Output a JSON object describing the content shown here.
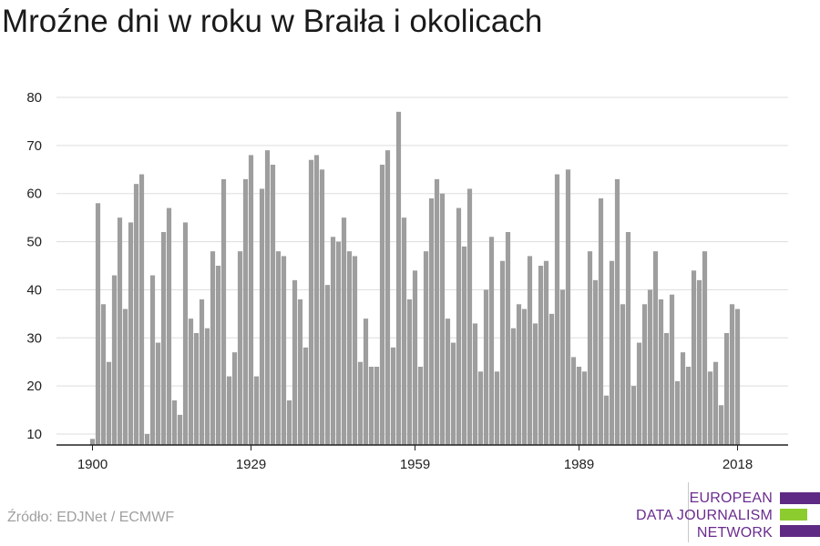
{
  "title": "Mroźne dni w roku w Braiła i okolicach",
  "source": "Źródło: EDJNet / ECMWF",
  "logo": {
    "line1": "EUROPEAN",
    "line2": "DATA JOURNALISM",
    "line3": "NETWORK"
  },
  "colors": {
    "bar": "#9e9e9e",
    "grid": "#dddddd",
    "axis": "#222222",
    "logo_purple": "#5f2a84",
    "logo_green": "#8ccc2e"
  },
  "chart_data": {
    "type": "bar",
    "title": "Mroźne dni w roku w Braiła i okolicach",
    "xlabel": "",
    "ylabel": "",
    "x_ticks": [
      "1900",
      "1929",
      "1959",
      "1989",
      "2018"
    ],
    "y_ticks": [
      10,
      20,
      30,
      40,
      50,
      60,
      70,
      80
    ],
    "ylim": [
      8,
      82
    ],
    "grid": true,
    "x": [
      1900,
      1901,
      1902,
      1903,
      1904,
      1905,
      1906,
      1907,
      1908,
      1909,
      1910,
      1911,
      1912,
      1913,
      1914,
      1915,
      1916,
      1917,
      1918,
      1919,
      1920,
      1921,
      1922,
      1923,
      1924,
      1925,
      1926,
      1927,
      1928,
      1929,
      1930,
      1931,
      1932,
      1933,
      1934,
      1935,
      1936,
      1937,
      1938,
      1939,
      1940,
      1941,
      1942,
      1943,
      1944,
      1945,
      1946,
      1947,
      1948,
      1949,
      1950,
      1951,
      1952,
      1953,
      1954,
      1955,
      1956,
      1957,
      1958,
      1959,
      1960,
      1961,
      1962,
      1963,
      1964,
      1965,
      1966,
      1967,
      1968,
      1969,
      1970,
      1971,
      1972,
      1973,
      1974,
      1975,
      1976,
      1977,
      1978,
      1979,
      1980,
      1981,
      1982,
      1983,
      1984,
      1985,
      1986,
      1987,
      1988,
      1989,
      1990,
      1991,
      1992,
      1993,
      1994,
      1995,
      1996,
      1997,
      1998,
      1999,
      2000,
      2001,
      2002,
      2003,
      2004,
      2005,
      2006,
      2007,
      2008,
      2009,
      2010,
      2011,
      2012,
      2013,
      2014,
      2015,
      2016,
      2017,
      2018
    ],
    "values": [
      9,
      58,
      37,
      25,
      43,
      55,
      36,
      54,
      62,
      64,
      10,
      43,
      29,
      52,
      57,
      17,
      14,
      54,
      34,
      31,
      38,
      32,
      48,
      45,
      63,
      22,
      27,
      48,
      63,
      68,
      22,
      61,
      69,
      66,
      48,
      47,
      17,
      42,
      38,
      28,
      67,
      68,
      65,
      41,
      51,
      50,
      55,
      48,
      47,
      25,
      34,
      24,
      24,
      66,
      69,
      28,
      77,
      55,
      38,
      44,
      24,
      48,
      59,
      63,
      60,
      34,
      29,
      57,
      49,
      61,
      33,
      23,
      40,
      51,
      23,
      46,
      52,
      32,
      37,
      36,
      47,
      33,
      45,
      46,
      35,
      64,
      40,
      65,
      26,
      24,
      23,
      48,
      42,
      59,
      18,
      46,
      63,
      37,
      52,
      20,
      29,
      37,
      40,
      48,
      38,
      31,
      39,
      21,
      27,
      24,
      44,
      42,
      48,
      23,
      25,
      16,
      31,
      37,
      36
    ]
  }
}
